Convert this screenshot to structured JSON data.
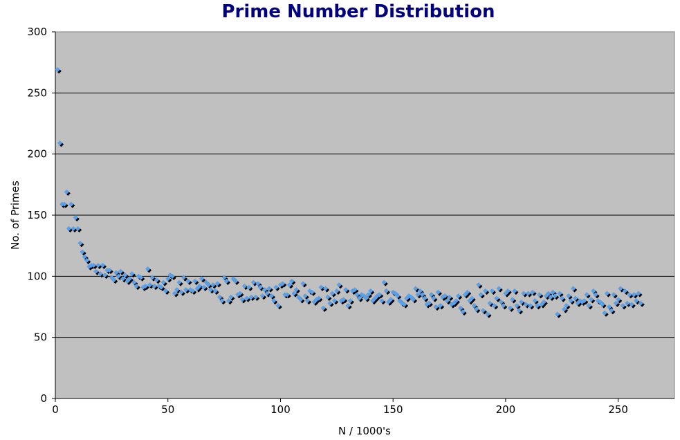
{
  "chart_data": {
    "type": "scatter",
    "title": "Prime Number Distribution",
    "xlabel": "N / 1000's",
    "ylabel": "No. of Primes",
    "xlim": [
      0,
      275
    ],
    "ylim": [
      0,
      300
    ],
    "x_ticks": [
      0,
      50,
      100,
      150,
      200,
      250
    ],
    "y_ticks": [
      0,
      50,
      100,
      150,
      200,
      250,
      300
    ],
    "grid": true,
    "legend": "none",
    "colors": {
      "plot_background": "#c0c0c0",
      "marker": "#5aa0e8",
      "marker_shadow": "#000000",
      "title": "#000080"
    },
    "series": [
      {
        "x": [
          1,
          2,
          3,
          4,
          5,
          6,
          7,
          8,
          9,
          10,
          11,
          12,
          13,
          14,
          15,
          16,
          17,
          18,
          19,
          20,
          21,
          22,
          23,
          24,
          25,
          26,
          27,
          28,
          29,
          30,
          31,
          32,
          33,
          34,
          35,
          36,
          37,
          38,
          39,
          40,
          41,
          42,
          43,
          44,
          45,
          46,
          47,
          48,
          49,
          50,
          51,
          52,
          53,
          54,
          55,
          56,
          57,
          58,
          59,
          60,
          61,
          62,
          63,
          64,
          65,
          66,
          67,
          68,
          69,
          70,
          71,
          72,
          73,
          74,
          75,
          76,
          77,
          78,
          79,
          80,
          81,
          82,
          83,
          84,
          85,
          86,
          87,
          88,
          89,
          90,
          91,
          92,
          93,
          94,
          95,
          96,
          97,
          98,
          99,
          100,
          101,
          102,
          103,
          104,
          105,
          106,
          107,
          108,
          109,
          110,
          111,
          112,
          113,
          114,
          115,
          116,
          117,
          118,
          119,
          120,
          121,
          122,
          123,
          124,
          125,
          126,
          127,
          128,
          129,
          130,
          131,
          132,
          133,
          134,
          135,
          136,
          137,
          138,
          139,
          140,
          141,
          142,
          143,
          144,
          145,
          146,
          147,
          148,
          149,
          150,
          151,
          152,
          153,
          154,
          155,
          156,
          157,
          158,
          159,
          160,
          161,
          162,
          163,
          164,
          165,
          166,
          167,
          168,
          169,
          170,
          171,
          172,
          173,
          174,
          175,
          176,
          177,
          178,
          179,
          180,
          181,
          182,
          183,
          184,
          185,
          186,
          187,
          188,
          189,
          190,
          191,
          192,
          193,
          194,
          195,
          196,
          197,
          198,
          199,
          200,
          201,
          202,
          203,
          204,
          205,
          206,
          207,
          208,
          209,
          210,
          211,
          212,
          213,
          214,
          215,
          216,
          217,
          218,
          219,
          220,
          221,
          222,
          223,
          224,
          225,
          226,
          227,
          228,
          229,
          230,
          231,
          232,
          233,
          234,
          235,
          236,
          237,
          238,
          239,
          240,
          241,
          242,
          243,
          244,
          245,
          246,
          247,
          248,
          249,
          250,
          251,
          252,
          253,
          254,
          255,
          256,
          257,
          258,
          259,
          260
        ],
        "y": [
          269,
          209,
          159,
          159,
          169,
          139,
          159,
          139,
          148,
          139,
          127,
          120,
          116,
          113,
          108,
          109,
          109,
          104,
          109,
          102,
          109,
          101,
          105,
          105,
          99,
          97,
          103,
          100,
          104,
          98,
          101,
          96,
          98,
          102,
          95,
          92,
          100,
          99,
          91,
          92,
          106,
          93,
          99,
          92,
          97,
          92,
          91,
          95,
          88,
          98,
          101,
          100,
          86,
          89,
          95,
          87,
          99,
          89,
          96,
          89,
          88,
          96,
          90,
          92,
          98,
          91,
          95,
          93,
          89,
          93,
          88,
          94,
          83,
          80,
          99,
          96,
          80,
          83,
          98,
          96,
          85,
          86,
          81,
          92,
          82,
          91,
          83,
          95,
          83,
          94,
          91,
          84,
          89,
          86,
          90,
          84,
          80,
          91,
          76,
          93,
          94,
          85,
          85,
          93,
          96,
          86,
          89,
          83,
          81,
          94,
          84,
          80,
          88,
          87,
          79,
          81,
          82,
          91,
          74,
          90,
          83,
          78,
          86,
          80,
          88,
          93,
          80,
          81,
          89,
          76,
          80,
          88,
          89,
          85,
          82,
          85,
          84,
          82,
          85,
          88,
          80,
          82,
          84,
          85,
          80,
          95,
          88,
          79,
          81,
          87,
          86,
          84,
          80,
          78,
          77,
          82,
          84,
          83,
          81,
          90,
          85,
          88,
          85,
          82,
          77,
          78,
          85,
          82,
          75,
          87,
          76,
          83,
          84,
          80,
          83,
          77,
          78,
          80,
          84,
          74,
          71,
          85,
          87,
          80,
          82,
          76,
          73,
          93,
          85,
          72,
          88,
          69,
          78,
          88,
          76,
          82,
          90,
          79,
          76,
          86,
          88,
          74,
          81,
          88,
          76,
          72,
          79,
          86,
          77,
          86,
          76,
          87,
          80,
          76,
          85,
          77,
          79,
          84,
          86,
          83,
          87,
          84,
          69,
          86,
          82,
          73,
          76,
          84,
          80,
          90,
          82,
          78,
          80,
          79,
          80,
          85,
          76,
          81,
          88,
          85,
          80,
          79,
          77,
          70,
          86,
          75,
          72,
          85,
          78,
          81,
          90,
          76,
          88,
          78,
          85,
          77,
          85,
          80,
          86,
          78
        ]
      }
    ]
  }
}
